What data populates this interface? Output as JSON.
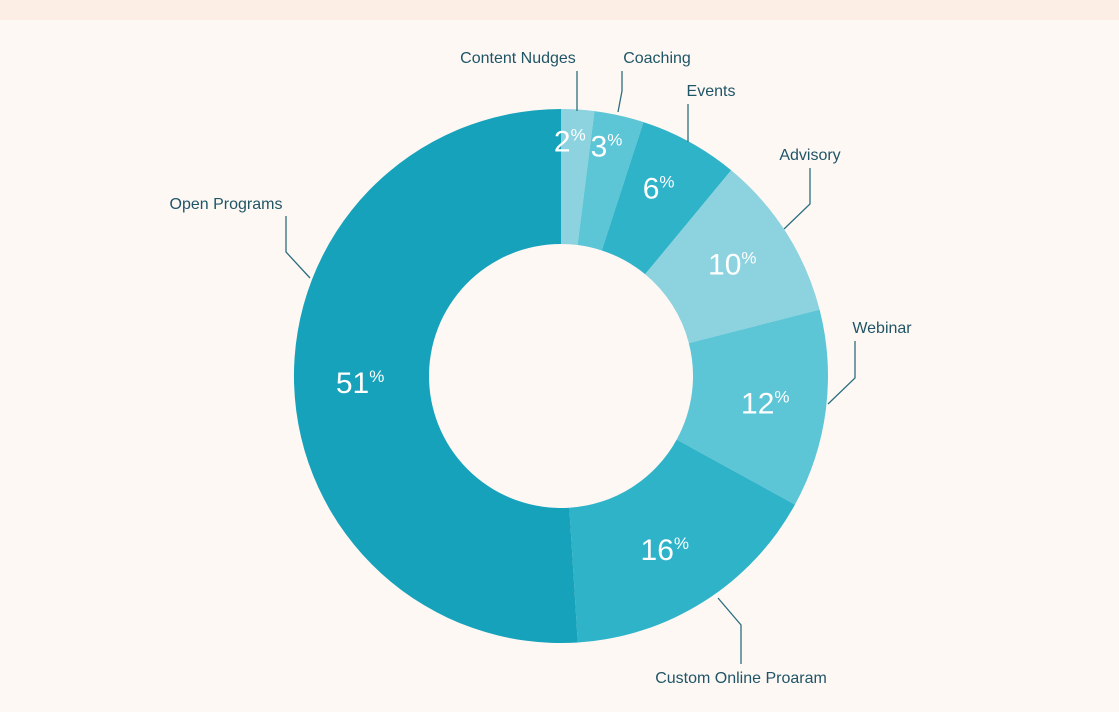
{
  "chart_data": {
    "type": "pie",
    "variant": "donut",
    "start_angle_deg": 0,
    "direction": "clockwise",
    "value_suffix": "%",
    "slices": [
      {
        "label": "Content Nudges",
        "value": 2,
        "value_text": "2",
        "color": "#8dd3df"
      },
      {
        "label": "Coaching",
        "value": 3,
        "value_text": "3",
        "color": "#5cc5d6"
      },
      {
        "label": "Events",
        "value": 6,
        "value_text": "6",
        "color": "#2fb3c9"
      },
      {
        "label": "Advisory",
        "value": 10,
        "value_text": "10",
        "color": "#8dd3df"
      },
      {
        "label": "Webinar",
        "value": 12,
        "value_text": "12",
        "color": "#5cc5d6"
      },
      {
        "label": "Custom Online Proaram",
        "value": 16,
        "value_text": "16",
        "color": "#2fb3c9"
      },
      {
        "label": "Open Programs",
        "value": 51,
        "value_text": "51",
        "color": "#17a2bb"
      }
    ]
  }
}
